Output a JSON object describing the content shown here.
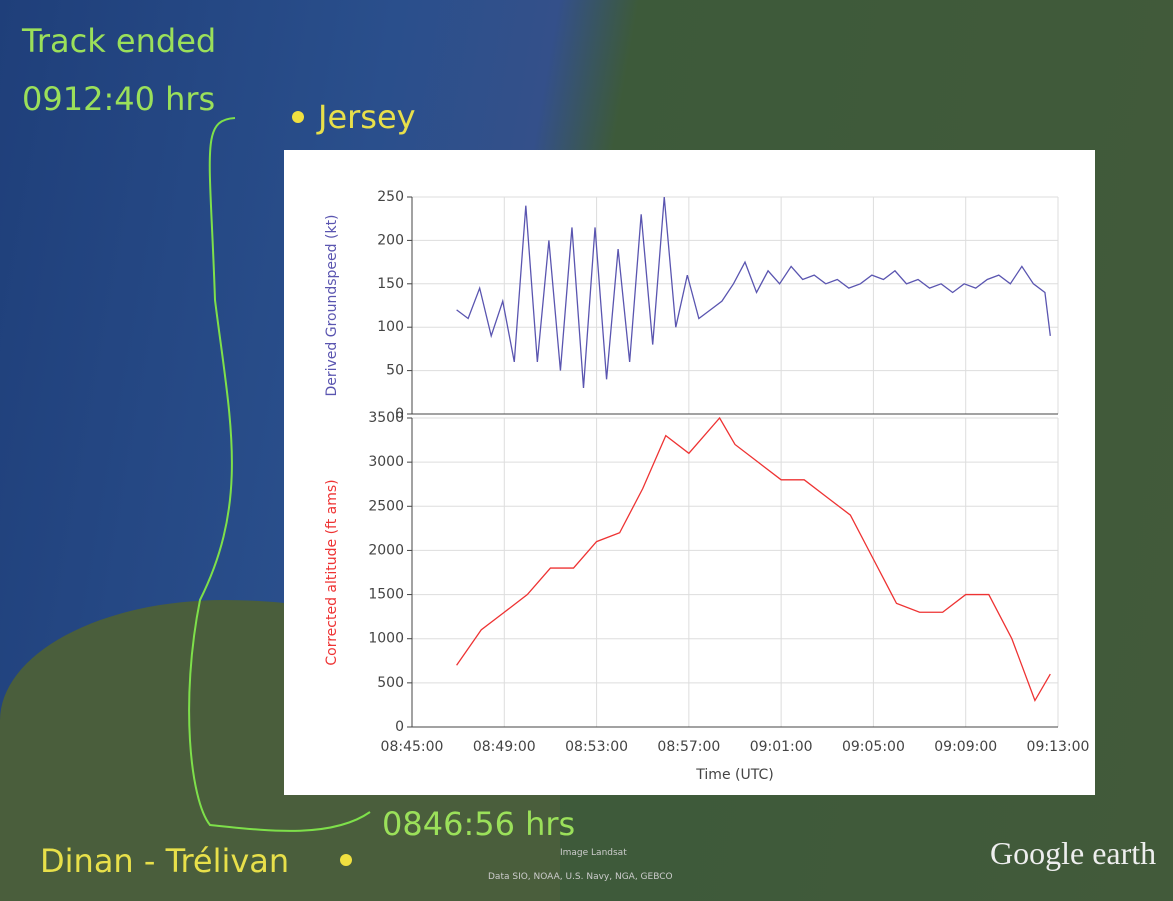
{
  "map": {
    "track_end_label": "Track ended",
    "track_end_time": "0912:40 hrs",
    "jersey": "Jersey",
    "track_start_time": "0846:56 hrs",
    "origin": "Dinan - Trélivan",
    "brand": "Google earth",
    "imagery": "Image Landsat",
    "data_credit": "Data SIO, NOAA, U.S. Navy, NGA, GEBCO"
  },
  "chart_data": [
    {
      "type": "line",
      "y_label": "Derived Groundspeed (kt)",
      "xlim": [
        31500,
        33180
      ],
      "ylim": [
        0,
        250
      ],
      "yticks": [
        0,
        50,
        100,
        150,
        200,
        250
      ],
      "grid": true,
      "x": [
        31616,
        31646,
        31676,
        31706,
        31736,
        31766,
        31796,
        31826,
        31856,
        31886,
        31916,
        31946,
        31976,
        32006,
        32036,
        32066,
        32096,
        32126,
        32156,
        32186,
        32216,
        32246,
        32276,
        32306,
        32336,
        32366,
        32396,
        32426,
        32456,
        32486,
        32516,
        32546,
        32576,
        32606,
        32636,
        32666,
        32696,
        32726,
        32756,
        32786,
        32816,
        32846,
        32876,
        32906,
        32936,
        32966,
        32996,
        33026,
        33056,
        33086,
        33116,
        33146,
        33160
      ],
      "series": [
        {
          "color": "#5a55b0",
          "values": [
            120,
            110,
            145,
            90,
            130,
            60,
            240,
            60,
            200,
            50,
            215,
            30,
            215,
            40,
            190,
            60,
            230,
            80,
            250,
            100,
            160,
            110,
            120,
            130,
            150,
            175,
            140,
            165,
            150,
            170,
            155,
            160,
            150,
            155,
            145,
            150,
            160,
            155,
            165,
            150,
            155,
            145,
            150,
            140,
            150,
            145,
            155,
            160,
            150,
            170,
            150,
            140,
            90
          ]
        }
      ]
    },
    {
      "type": "line",
      "y_label": "Corrected altitude (ft ams)",
      "x_label": "Time (UTC)",
      "xlim": [
        31500,
        33180
      ],
      "xticks": [
        {
          "value": 31500,
          "label": "08:45:00"
        },
        {
          "value": 31740,
          "label": "08:49:00"
        },
        {
          "value": 31980,
          "label": "08:53:00"
        },
        {
          "value": 32220,
          "label": "08:57:00"
        },
        {
          "value": 32460,
          "label": "09:01:00"
        },
        {
          "value": 32700,
          "label": "09:05:00"
        },
        {
          "value": 32940,
          "label": "09:09:00"
        },
        {
          "value": 33180,
          "label": "09:13:00"
        }
      ],
      "ylim": [
        0,
        3500
      ],
      "yticks": [
        0,
        500,
        1000,
        1500,
        2000,
        2500,
        3000,
        3500
      ],
      "grid": true,
      "x": [
        31616,
        31680,
        31740,
        31800,
        31860,
        31920,
        31980,
        32040,
        32100,
        32160,
        32220,
        32300,
        32340,
        32400,
        32460,
        32520,
        32580,
        32640,
        32700,
        32760,
        32820,
        32880,
        32940,
        33000,
        33060,
        33120,
        33160
      ],
      "series": [
        {
          "color": "#ee3333",
          "values": [
            700,
            1100,
            1300,
            1500,
            1800,
            1800,
            2100,
            2200,
            2700,
            3300,
            3100,
            3500,
            3200,
            3000,
            2800,
            2800,
            2600,
            2400,
            1900,
            1400,
            1300,
            1300,
            1500,
            1500,
            1000,
            300,
            600
          ]
        }
      ]
    }
  ]
}
